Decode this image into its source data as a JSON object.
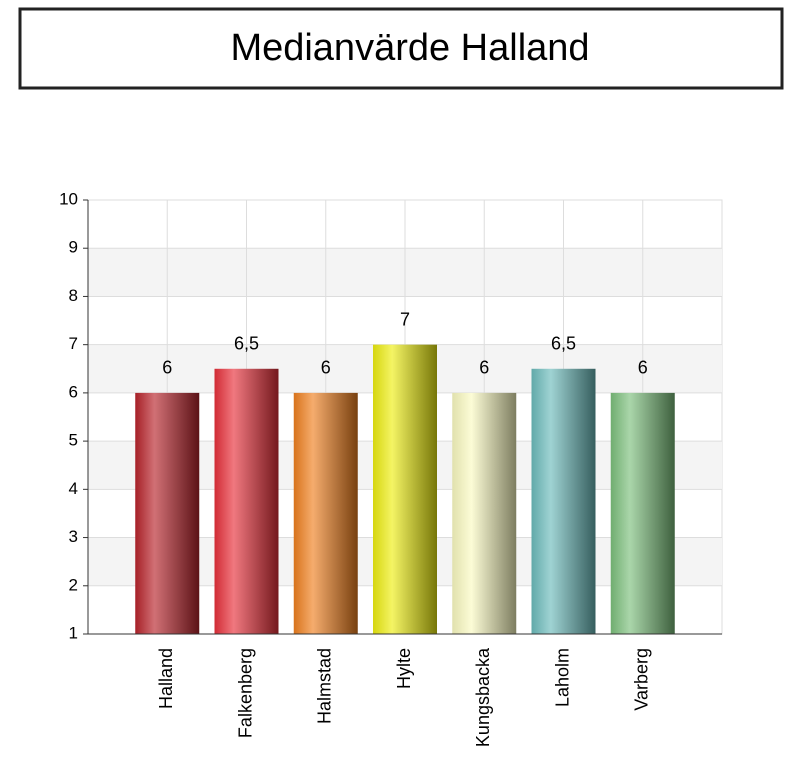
{
  "chart_data": {
    "type": "bar",
    "title": "Medianvärde Halland",
    "categories": [
      "Halland",
      "Falkenberg",
      "Halmstad",
      "Hylte",
      "Kungsbacka",
      "Laholm",
      "Varberg"
    ],
    "values": [
      6,
      6.5,
      6,
      7,
      6,
      6.5,
      6
    ],
    "value_labels": [
      "6",
      "6,5",
      "6",
      "7",
      "6",
      "6,5",
      "6"
    ],
    "colors": [
      "#b8232b",
      "#e8303a",
      "#f0801e",
      "#eeee10",
      "#fafac0",
      "#6cbcbc",
      "#7cc07c"
    ],
    "ylim": [
      1,
      10
    ],
    "yticks": [
      1,
      2,
      3,
      4,
      5,
      6,
      7,
      8,
      9,
      10
    ],
    "grid": true
  }
}
